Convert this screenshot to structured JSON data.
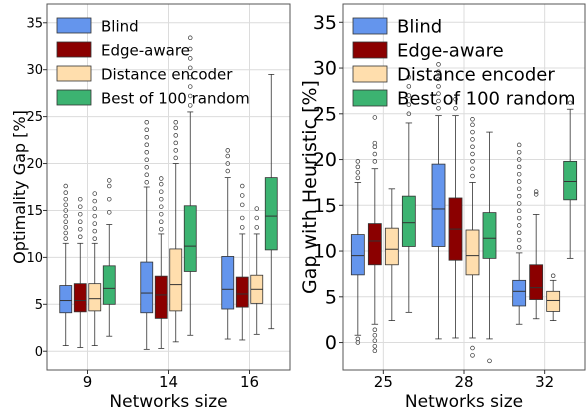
{
  "chart_data": [
    {
      "type": "box",
      "ylabel": "Optimality Gap [%]",
      "xlabel": "Networks size",
      "categories": [
        "9",
        "14",
        "16"
      ],
      "ylim": [
        -2,
        37
      ],
      "yticks": [
        0,
        5,
        10,
        15,
        20,
        25,
        30,
        35
      ],
      "grid": true,
      "legend_position": "top-left",
      "series": [
        {
          "name": "Blind",
          "color": "#6495ED",
          "boxes": [
            {
              "whislo": 0.6,
              "q1": 4.1,
              "med": 5.4,
              "q3": 7.0,
              "whishi": 11.5,
              "fliers": [
                12.0,
                12.6,
                13.2,
                13.8,
                14.4,
                15.0,
                15.6,
                16.2,
                16.9,
                17.6
              ]
            },
            {
              "whislo": 0.2,
              "q1": 4.1,
              "med": 6.2,
              "q3": 9.5,
              "whishi": 17.5,
              "fliers": [
                18.0,
                18.8,
                19.6,
                20.4,
                21.2,
                22.0,
                22.8,
                23.6,
                24.4
              ]
            },
            {
              "whislo": 1.3,
              "q1": 4.5,
              "med": 6.6,
              "q3": 10.1,
              "whishi": 18.5,
              "fliers": [
                19.2,
                20.0,
                20.8,
                21.4
              ]
            }
          ]
        },
        {
          "name": "Edge-aware",
          "color": "#8B0000",
          "boxes": [
            {
              "whislo": 0.4,
              "q1": 4.2,
              "med": 5.4,
              "q3": 7.2,
              "whishi": 11.5,
              "fliers": [
                12.2,
                13.0,
                13.8,
                14.6,
                15.4,
                16.2
              ]
            },
            {
              "whislo": 0.3,
              "q1": 3.5,
              "med": 6.0,
              "q3": 8.0,
              "whishi": 12.5,
              "fliers": [
                13.0,
                13.8,
                14.6,
                15.4,
                16.2,
                17.0,
                17.8,
                18.4
              ]
            },
            {
              "whislo": 1.2,
              "q1": 4.7,
              "med": 6.1,
              "q3": 7.9,
              "whishi": 12.5,
              "fliers": [
                13.2,
                14.2,
                15.6,
                16.6,
                17.6
              ]
            }
          ]
        },
        {
          "name": "Distance encoder",
          "color": "#FFDEAD",
          "boxes": [
            {
              "whislo": 0.6,
              "q1": 4.3,
              "med": 5.6,
              "q3": 7.2,
              "whishi": 11.5,
              "fliers": [
                12.0,
                12.8,
                13.6,
                14.4,
                15.2,
                16.0,
                16.8
              ]
            },
            {
              "whislo": 1.0,
              "q1": 4.3,
              "med": 7.1,
              "q3": 10.9,
              "whishi": 20.0,
              "fliers": [
                20.6,
                21.4,
                22.2,
                23.0,
                23.8,
                24.4
              ]
            },
            {
              "whislo": 1.8,
              "q1": 5.1,
              "med": 6.6,
              "q3": 8.1,
              "whishi": 12.5,
              "fliers": [
                13.2,
                14.2,
                15.2
              ]
            }
          ]
        },
        {
          "name": "Best of 100 random",
          "color": "#3CB371",
          "boxes": [
            {
              "whislo": 1.6,
              "q1": 5.0,
              "med": 6.7,
              "q3": 9.1,
              "whishi": 13.5,
              "fliers": [
                14.8,
                16.2,
                17.6,
                18.2
              ]
            },
            {
              "whislo": 1.7,
              "q1": 8.5,
              "med": 11.2,
              "q3": 15.5,
              "whishi": 25.5,
              "fliers": [
                26.2,
                27.2,
                28.2,
                29.2,
                30.2,
                31.2,
                32.2,
                33.4
              ]
            },
            {
              "whislo": 2.4,
              "q1": 10.8,
              "med": 14.4,
              "q3": 18.5,
              "whishi": 29.5,
              "fliers": []
            }
          ]
        }
      ]
    },
    {
      "type": "box",
      "ylabel": "Gap with Heuristic [%]",
      "xlabel": "Networks size",
      "categories": [
        "25",
        "28",
        "32"
      ],
      "ylim": [
        -3,
        37
      ],
      "yticks": [
        0,
        5,
        10,
        15,
        20,
        25,
        30,
        35
      ],
      "grid": true,
      "legend_position": "top-left",
      "series": [
        {
          "name": "Blind",
          "color": "#6495ED",
          "boxes": [
            {
              "whislo": 0.8,
              "q1": 7.4,
              "med": 9.5,
              "q3": 11.8,
              "whishi": 17.5,
              "fliers": [
                18.0,
                18.6,
                19.2,
                19.8,
                0.4,
                0.0
              ]
            },
            {
              "whislo": 0.4,
              "q1": 10.5,
              "med": 14.6,
              "q3": 19.5,
              "whishi": 24.8,
              "fliers": [
                25.6,
                26.4,
                27.2,
                28.0,
                28.8,
                29.6,
                30.4
              ]
            },
            {
              "whislo": 2.0,
              "q1": 4.0,
              "med": 5.6,
              "q3": 6.8,
              "whishi": 9.8,
              "fliers": [
                10.4,
                11.2,
                12.0,
                12.8,
                13.6,
                14.4,
                15.2,
                16.0,
                16.8,
                17.6,
                18.4,
                19.2,
                20.0,
                20.8,
                21.6
              ]
            }
          ]
        },
        {
          "name": "Edge-aware",
          "color": "#8B0000",
          "boxes": [
            {
              "whislo": 2.0,
              "q1": 8.5,
              "med": 11.1,
              "q3": 13.0,
              "whishi": 19.0,
              "fliers": [
                19.8,
                20.6,
                21.4,
                21.8,
                24.6,
                1.4,
                0.8,
                0.2,
                -0.4,
                -0.9
              ]
            },
            {
              "whislo": 0.5,
              "q1": 9.0,
              "med": 12.4,
              "q3": 15.8,
              "whishi": 24.8,
              "fliers": [
                25.6,
                26.6
              ]
            },
            {
              "whislo": 2.6,
              "q1": 4.7,
              "med": 6.0,
              "q3": 8.5,
              "whishi": 14.0,
              "fliers": [
                16.2,
                16.5
              ]
            }
          ]
        },
        {
          "name": "Distance encoder",
          "color": "#FFDEAD",
          "boxes": [
            {
              "whislo": 2.4,
              "q1": 8.5,
              "med": 10.2,
              "q3": 12.5,
              "whishi": 16.8,
              "fliers": []
            },
            {
              "whislo": 0.5,
              "q1": 7.4,
              "med": 9.5,
              "q3": 12.3,
              "whishi": 17.5,
              "fliers": [
                18.2,
                19.0,
                19.8,
                20.6,
                21.4,
                22.2,
                23.0,
                23.8,
                24.4,
                -0.6,
                -1.4
              ]
            },
            {
              "whislo": 2.4,
              "q1": 3.4,
              "med": 4.6,
              "q3": 5.6,
              "whishi": 6.8,
              "fliers": [
                7.3
              ]
            }
          ]
        },
        {
          "name": "Best of 100 random",
          "color": "#3CB371",
          "boxes": [
            {
              "whislo": 3.3,
              "q1": 10.5,
              "med": 13.1,
              "q3": 16.0,
              "whishi": 24.0,
              "fliers": [
                25.0,
                26.0,
                27.0,
                28.0,
                29.0
              ]
            },
            {
              "whislo": 0.4,
              "q1": 9.2,
              "med": 11.4,
              "q3": 14.2,
              "whishi": 23.0,
              "fliers": [
                -2.0
              ]
            },
            {
              "whislo": 9.2,
              "q1": 15.6,
              "med": 17.6,
              "q3": 19.8,
              "whishi": 25.5,
              "fliers": [
                26.2
              ]
            }
          ]
        }
      ]
    }
  ]
}
